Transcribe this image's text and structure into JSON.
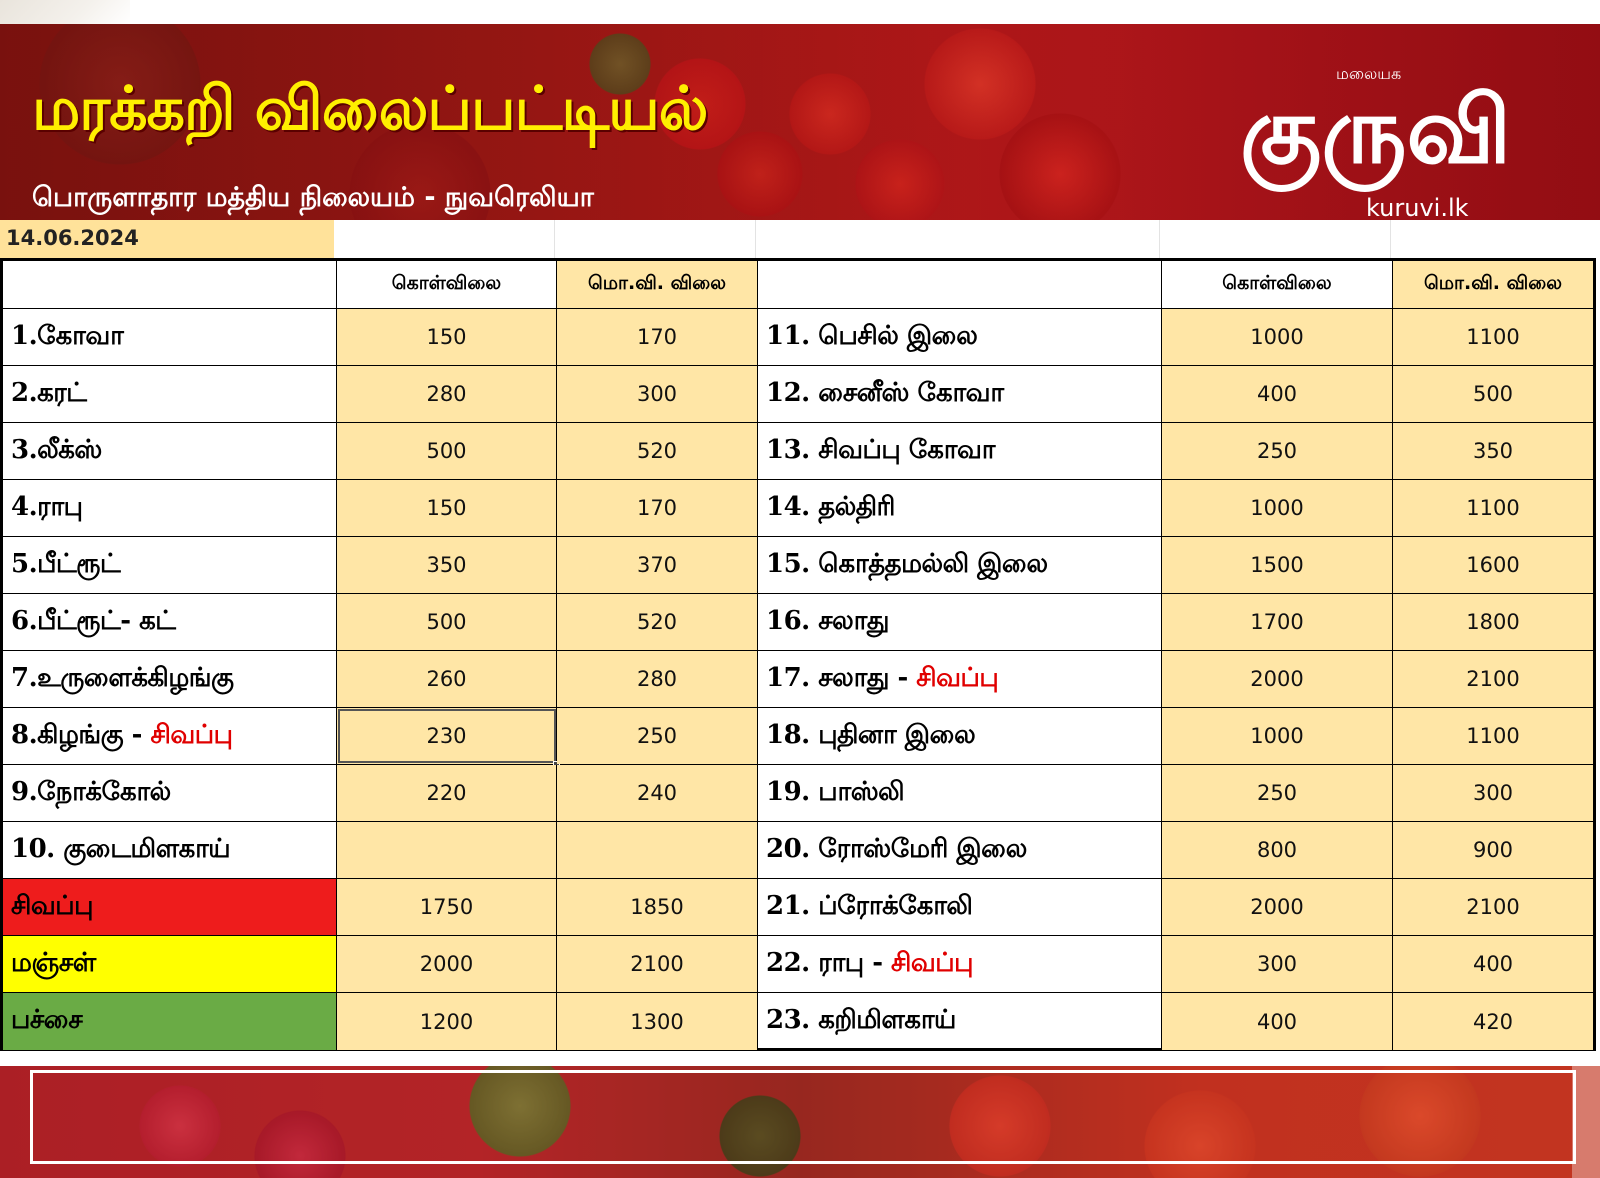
{
  "header": {
    "title": "மரக்கறி விலைப்பட்டியல்",
    "subtitle": "பொருளாதார மத்திய நிலையம் - நுவரெலியா",
    "logo": {
      "script": "குருவி",
      "small": "மலையக",
      "url": "kuruvi.lk"
    },
    "accent_color": "#ffef00",
    "banner_color": "#b3191a"
  },
  "date": "14.06.2024",
  "columns": {
    "wholesale": "கொள்விலை",
    "retail": "மொ.வி. விலை"
  },
  "left_rows": [
    {
      "name": "1.கோவா",
      "red": "",
      "wholesale": "150",
      "retail": "170"
    },
    {
      "name": "2.கரட்",
      "red": "",
      "wholesale": "280",
      "retail": "300"
    },
    {
      "name": "3.லீக்ஸ்",
      "red": "",
      "wholesale": "500",
      "retail": "520"
    },
    {
      "name": "4.ராபு",
      "red": "",
      "wholesale": "150",
      "retail": "170"
    },
    {
      "name": "5.பீட்ரூட்",
      "red": "",
      "wholesale": "350",
      "retail": "370"
    },
    {
      "name": "6.பீட்ரூட்- கட்",
      "red": "",
      "wholesale": "500",
      "retail": "520"
    },
    {
      "name": "7.உருளைக்கிழங்கு",
      "red": "",
      "wholesale": "260",
      "retail": "280"
    },
    {
      "name": "8.கிழங்கு - ",
      "red": "சிவப்பு",
      "wholesale": "230",
      "retail": "250"
    },
    {
      "name": "9.நோக்கோல்",
      "red": "",
      "wholesale": "220",
      "retail": "240"
    },
    {
      "name": "10. குடைமிளகாய்",
      "red": "",
      "wholesale": "",
      "retail": ""
    },
    {
      "name": "சிவப்பு",
      "red": "",
      "wholesale": "1750",
      "retail": "1850",
      "color": "#ee1c1c"
    },
    {
      "name": "மஞ்சள்",
      "red": "",
      "wholesale": "2000",
      "retail": "2100",
      "color": "#ffff00"
    },
    {
      "name": "பச்சை",
      "red": "",
      "wholesale": "1200",
      "retail": "1300",
      "color": "#6aab45"
    }
  ],
  "right_rows": [
    {
      "name": "11. பெசில் இலை",
      "red": "",
      "wholesale": "1000",
      "retail": "1100"
    },
    {
      "name": "12. சைனீஸ் கோவா",
      "red": "",
      "wholesale": "400",
      "retail": "500"
    },
    {
      "name": "13. சிவப்பு கோவா",
      "red": "",
      "wholesale": "250",
      "retail": "350"
    },
    {
      "name": "14. தல்திரி",
      "red": "",
      "wholesale": "1000",
      "retail": "1100"
    },
    {
      "name": "15. கொத்தமல்லி இலை",
      "red": "",
      "wholesale": "1500",
      "retail": "1600"
    },
    {
      "name": "16. சலாது",
      "red": "",
      "wholesale": "1700",
      "retail": "1800"
    },
    {
      "name": "17. சலாது - ",
      "red": "சிவப்பு",
      "wholesale": "2000",
      "retail": "2100"
    },
    {
      "name": "18. புதினா இலை",
      "red": "",
      "wholesale": "1000",
      "retail": "1100"
    },
    {
      "name": "19. பாஸ்லி",
      "red": "",
      "wholesale": "250",
      "retail": "300"
    },
    {
      "name": "20. ரோஸ்மேரி இலை",
      "red": "",
      "wholesale": "800",
      "retail": "900"
    },
    {
      "name": "21. ப்ரோக்கோலி",
      "red": "",
      "wholesale": "2000",
      "retail": "2100"
    },
    {
      "name": "22. ராபு - ",
      "red": "சிவப்பு",
      "wholesale": "300",
      "retail": "400"
    },
    {
      "name": "23. கறிமிளகாய்",
      "red": "",
      "wholesale": "400",
      "retail": "420"
    }
  ]
}
